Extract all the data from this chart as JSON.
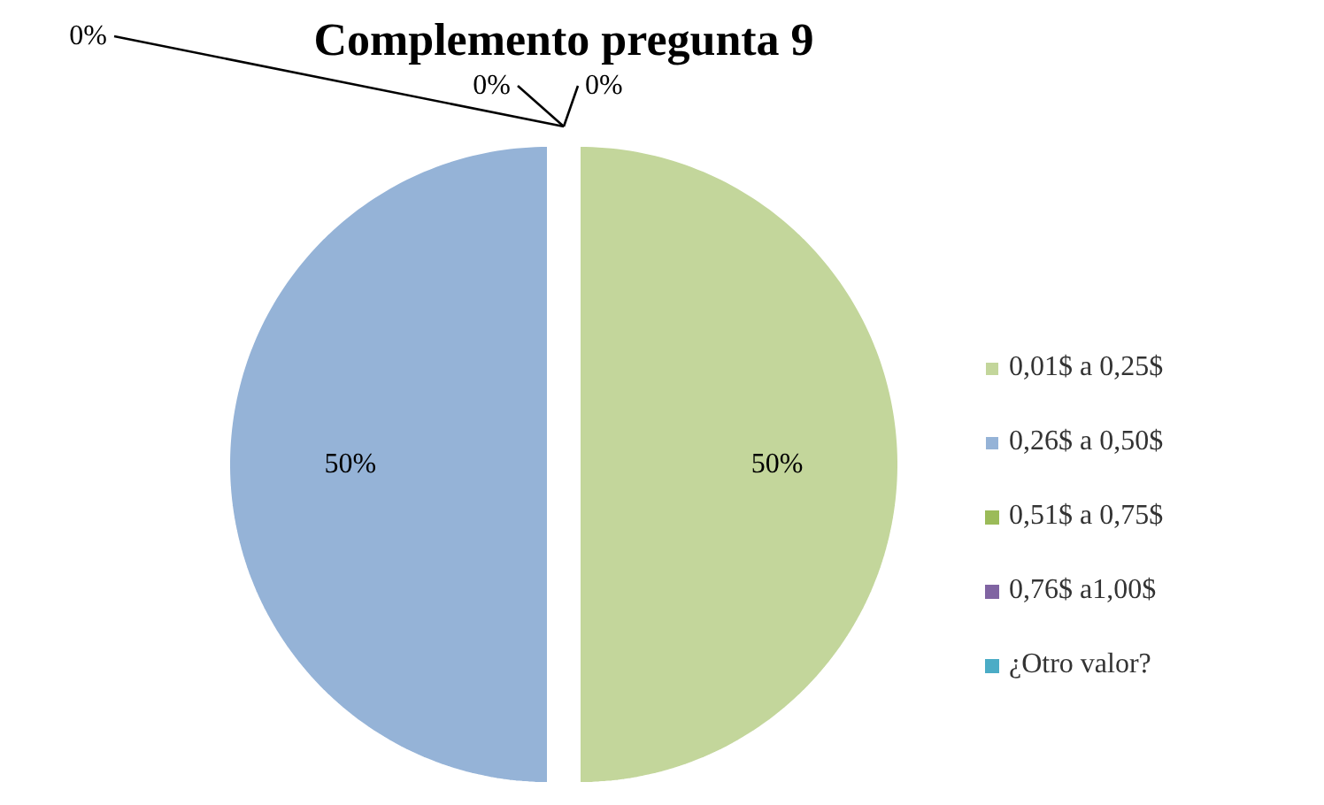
{
  "chart_data": {
    "type": "pie",
    "title": "Complemento pregunta 9",
    "categories": [
      "0,01$ a 0,25$",
      "0,26$ a 0,50$",
      "0,51$ a 0,75$",
      "0,76$ a1,00$",
      "¿Otro valor?"
    ],
    "values": [
      50,
      50,
      0,
      0,
      0
    ],
    "colors": [
      "#c3d69b",
      "#95b3d7",
      "#9bbb59",
      "#8064a2",
      "#4bacc6"
    ],
    "value_labels": [
      "50%",
      "50%",
      "0%",
      "0%",
      "0%"
    ],
    "legend": "right"
  }
}
